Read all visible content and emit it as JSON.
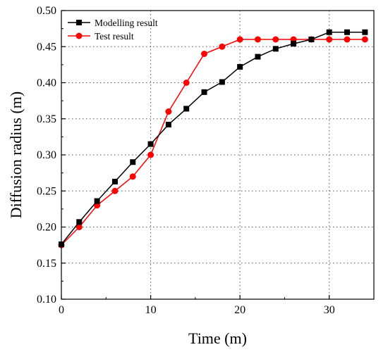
{
  "chart_data": {
    "type": "line",
    "xlabel": "Time (m)",
    "ylabel": "Diffusion radius (m)",
    "xlim": [
      0,
      35
    ],
    "ylim": [
      0.1,
      0.5
    ],
    "xticks": [
      0,
      10,
      20,
      30
    ],
    "yticks": [
      0.1,
      0.15,
      0.2,
      0.25,
      0.3,
      0.35,
      0.4,
      0.45,
      0.5
    ],
    "grid": "dotted",
    "legend_position": "top-left",
    "series": [
      {
        "name": "Modelling result",
        "color": "#000000",
        "marker": "square",
        "x": [
          0,
          2,
          4,
          6,
          8,
          10,
          12,
          14,
          16,
          18,
          20,
          22,
          24,
          26,
          28,
          30,
          32,
          34
        ],
        "y": [
          0.176,
          0.207,
          0.236,
          0.263,
          0.29,
          0.315,
          0.342,
          0.364,
          0.387,
          0.401,
          0.422,
          0.436,
          0.447,
          0.454,
          0.46,
          0.47,
          0.47,
          0.47
        ]
      },
      {
        "name": "Test result",
        "color": "#ff0000",
        "marker": "circle",
        "x": [
          0,
          2,
          4,
          6,
          8,
          10,
          12,
          14,
          16,
          18,
          20,
          22,
          24,
          26,
          28,
          30,
          32,
          34
        ],
        "y": [
          0.175,
          0.2,
          0.23,
          0.25,
          0.27,
          0.3,
          0.36,
          0.4,
          0.44,
          0.45,
          0.46,
          0.46,
          0.46,
          0.46,
          0.46,
          0.46,
          0.46,
          0.46
        ]
      }
    ]
  }
}
